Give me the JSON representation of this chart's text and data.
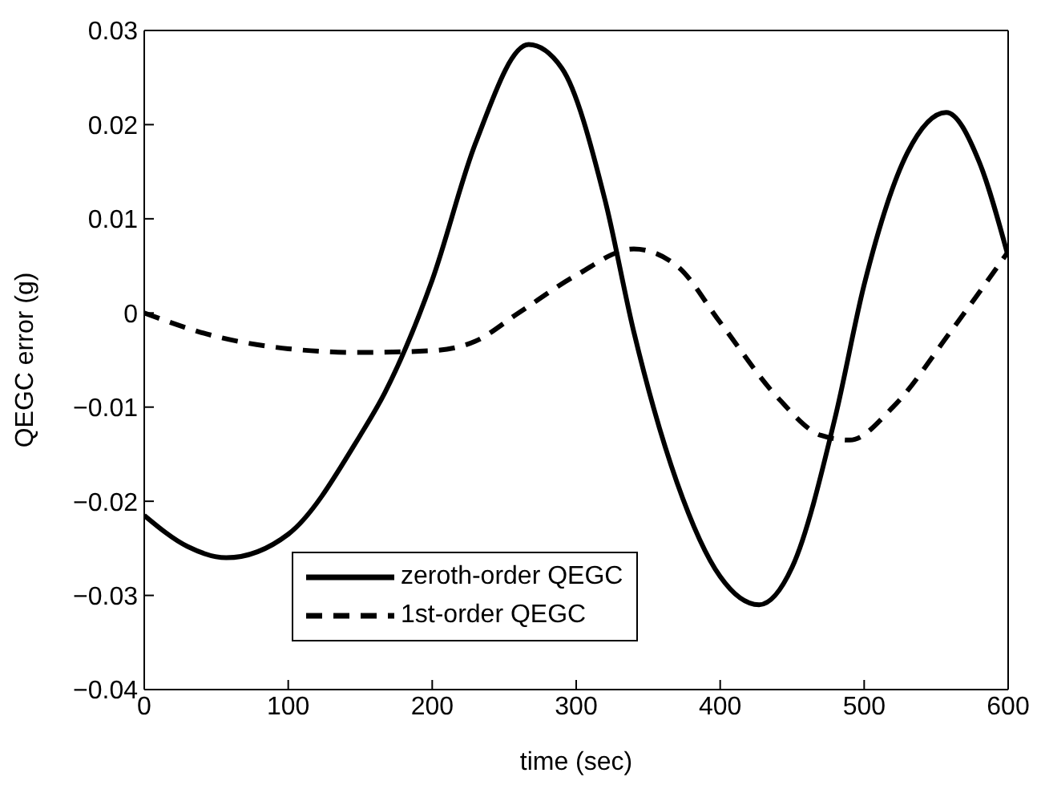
{
  "chart_data": {
    "type": "line",
    "xlabel": "time (sec)",
    "ylabel": "QEGC error (g)",
    "xlim": [
      0,
      600
    ],
    "xticks": [
      0,
      100,
      200,
      300,
      400,
      500,
      600
    ],
    "ylim": [
      -0.04,
      0.03
    ],
    "yticks": [
      -0.04,
      -0.03,
      -0.02,
      -0.01,
      0,
      0.01,
      0.02,
      0.03
    ],
    "grid": false,
    "legend": "bottom",
    "marker": "none",
    "series": [
      {
        "name": "zeroth-order QEGC",
        "color": "#000000",
        "line_style": "solid",
        "x": [
          0,
          30,
          57,
          100,
          150,
          167,
          200,
          230,
          267,
          290,
          320,
          340,
          370,
          400,
          427,
          450,
          480,
          500,
          530,
          557,
          580,
          600
        ],
        "values": [
          -0.0215,
          -0.0248,
          -0.026,
          -0.0235,
          -0.013,
          -0.0085,
          0.0035,
          0.018,
          0.0285,
          0.026,
          0.012,
          -0.002,
          -0.018,
          -0.028,
          -0.031,
          -0.027,
          -0.011,
          0.003,
          0.017,
          0.0213,
          0.016,
          0.006
        ]
      },
      {
        "name": "1st-order QEGC",
        "color": "#000000",
        "line_style": "dashed",
        "x": [
          0,
          50,
          100,
          150,
          200,
          230,
          260,
          300,
          340,
          370,
          400,
          440,
          470,
          490,
          520,
          560,
          600
        ],
        "values": [
          0,
          -0.0025,
          -0.0038,
          -0.0042,
          -0.004,
          -0.003,
          0,
          0.004,
          0.0068,
          0.005,
          -0.001,
          -0.009,
          -0.013,
          -0.0135,
          -0.01,
          -0.002,
          0.0065
        ]
      }
    ]
  }
}
